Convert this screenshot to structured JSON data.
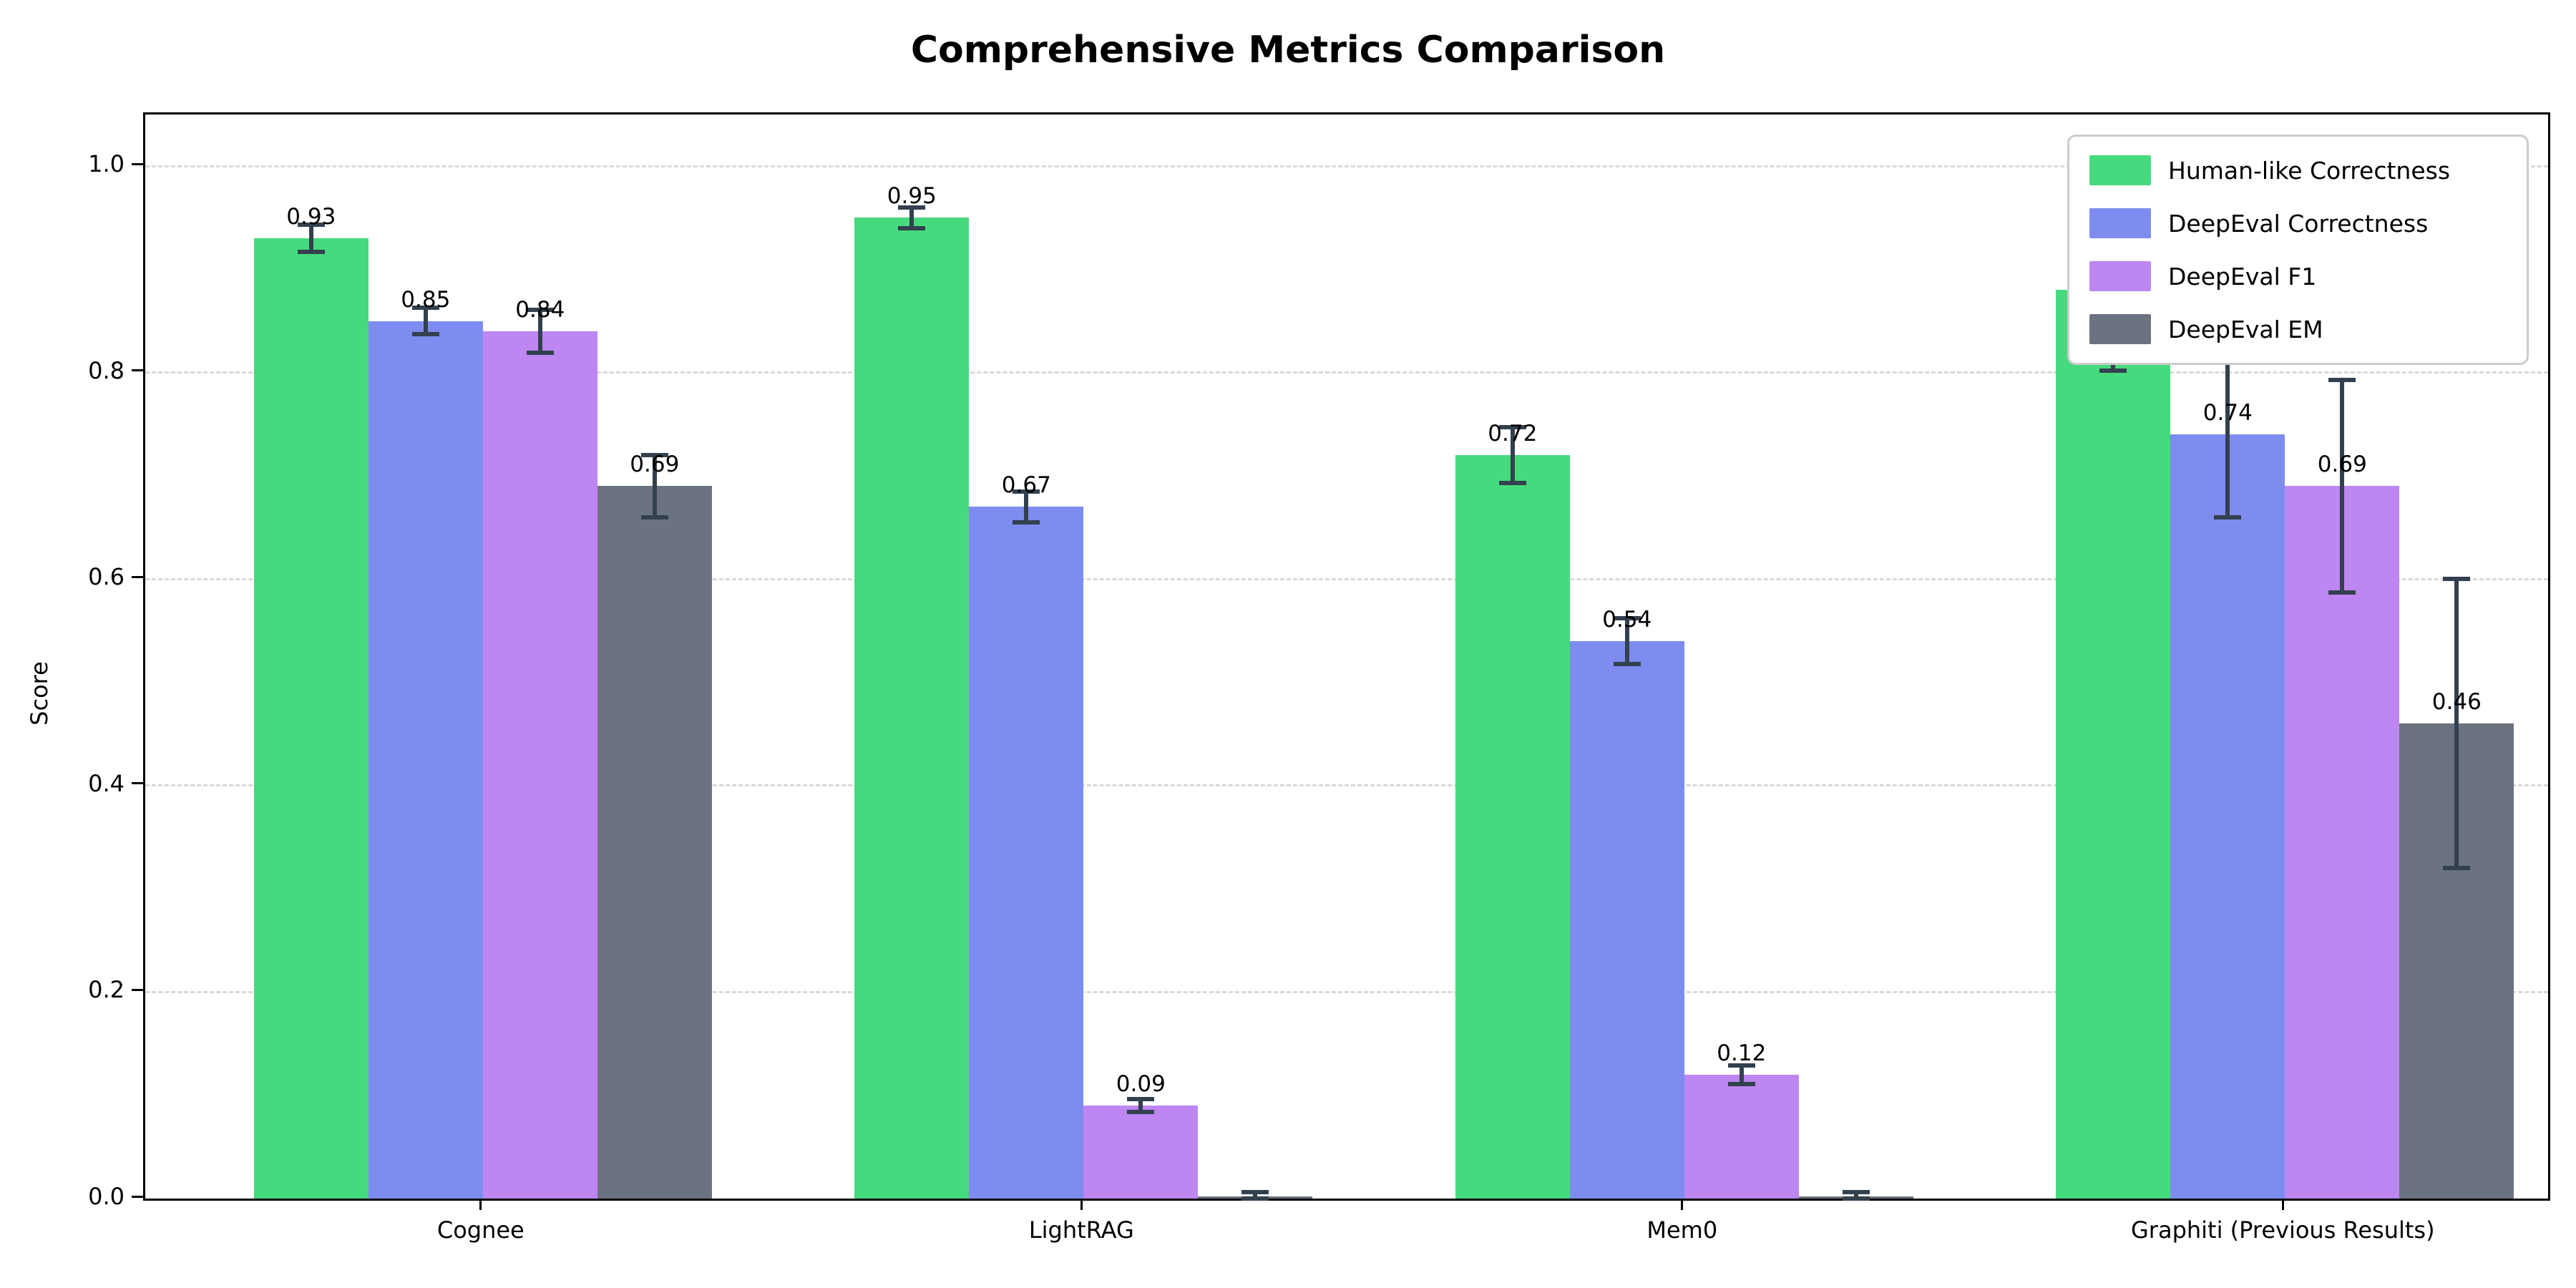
{
  "title": "Comprehensive Metrics Comparison",
  "y_axis_label": "Score",
  "chart_data": {
    "type": "bar",
    "title": "Comprehensive Metrics Comparison",
    "xlabel": "",
    "ylabel": "Score",
    "categories": [
      "Cognee",
      "LightRAG",
      "Mem0",
      "Graphiti (Previous Results)"
    ],
    "series": [
      {
        "name": "Human-like Correctness",
        "color": "#46da7e",
        "values": [
          0.93,
          0.95,
          0.72,
          0.88
        ],
        "errors": [
          0.013,
          0.01,
          0.027,
          0.078
        ],
        "labels": [
          "0.93",
          "0.95",
          "0.72",
          "0.88"
        ]
      },
      {
        "name": "DeepEval Correctness",
        "color": "#7e8cef",
        "values": [
          0.85,
          0.67,
          0.54,
          0.74
        ],
        "errors": [
          0.013,
          0.015,
          0.022,
          0.08
        ],
        "labels": [
          "0.85",
          "0.67",
          "0.54",
          "0.74"
        ]
      },
      {
        "name": "DeepEval F1",
        "color": "#bd86f1",
        "values": [
          0.84,
          0.09,
          0.12,
          0.69
        ],
        "errors": [
          0.021,
          0.006,
          0.009,
          0.103
        ],
        "labels": [
          "0.84",
          "0.09",
          "0.12",
          "0.69"
        ]
      },
      {
        "name": "DeepEval EM",
        "color": "#6b7280",
        "values": [
          0.69,
          0.002,
          0.002,
          0.46
        ],
        "errors": [
          0.03,
          0.004,
          0.004,
          0.14
        ],
        "labels": [
          "0.69",
          "",
          "",
          "0.46"
        ]
      }
    ],
    "yticks": [
      0.0,
      0.2,
      0.4,
      0.6,
      0.8,
      1.0
    ],
    "ytick_labels": [
      "0.0",
      "0.2",
      "0.4",
      "0.6",
      "0.8",
      "1.0"
    ],
    "ylim": [
      0,
      1.05
    ],
    "grid": "horizontal-dashed",
    "grid_color": "#d9d9d9",
    "error_bar_color": "#33404e",
    "legend_position": "upper right",
    "legend_border_color": "#cccccc"
  }
}
